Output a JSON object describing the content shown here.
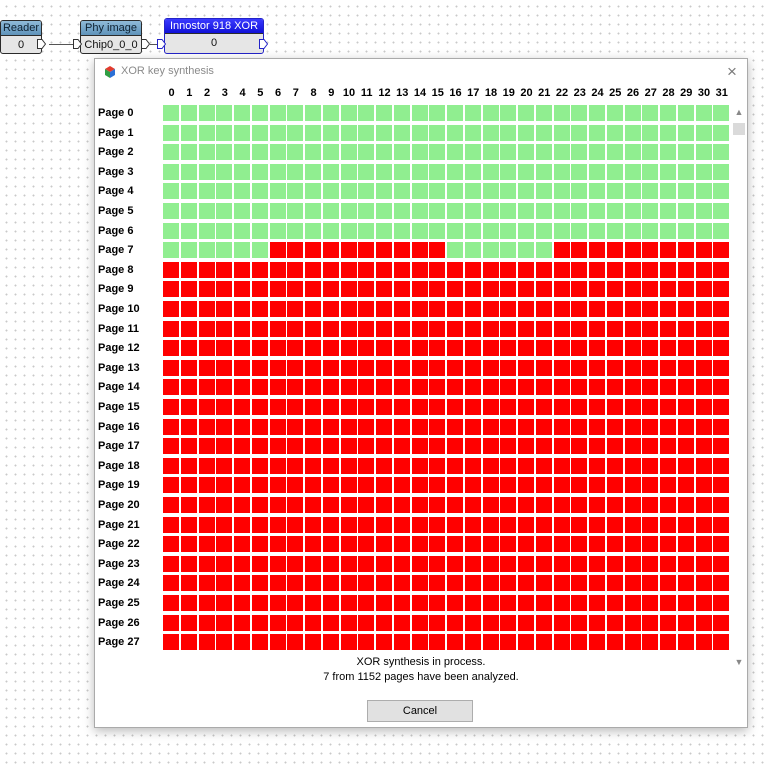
{
  "nodes": [
    {
      "title": "Reader",
      "value": "0"
    },
    {
      "title": "Phy image",
      "value": "Chip0_0_0"
    },
    {
      "title": "Innostor 918 XOR",
      "value": "0"
    }
  ],
  "dialog": {
    "title": "XOR key synthesis",
    "close_glyph": "×",
    "status_line1": "XOR synthesis in process.",
    "status_line2": "7 from 1152 pages have been analyzed.",
    "cancel_label": "Cancel"
  },
  "grid": {
    "columns": [
      "0",
      "1",
      "2",
      "3",
      "4",
      "5",
      "6",
      "7",
      "8",
      "9",
      "10",
      "11",
      "12",
      "13",
      "14",
      "15",
      "16",
      "17",
      "18",
      "19",
      "20",
      "21",
      "22",
      "23",
      "24",
      "25",
      "26",
      "27",
      "28",
      "29",
      "30",
      "31"
    ],
    "rows": [
      "Page 0",
      "Page 1",
      "Page 2",
      "Page 3",
      "Page 4",
      "Page 5",
      "Page 6",
      "Page 7",
      "Page 8",
      "Page 9",
      "Page 10",
      "Page 11",
      "Page 12",
      "Page 13",
      "Page 14",
      "Page 15",
      "Page 16",
      "Page 17",
      "Page 18",
      "Page 19",
      "Page 20",
      "Page 21",
      "Page 22",
      "Page 23",
      "Page 24",
      "Page 25",
      "Page 26",
      "Page 27"
    ],
    "analyzed_full_rows": 7,
    "partial_row": {
      "row": 7,
      "green_columns": [
        0,
        1,
        2,
        3,
        4,
        5,
        16,
        17,
        18,
        19,
        20,
        21
      ]
    },
    "colors": {
      "analyzed": "#90ee90",
      "pending": "#ff0000"
    }
  },
  "icons": {
    "app": "xor-app-icon",
    "close": "close-icon",
    "scroll_up": "scroll-up-icon",
    "scroll_down": "scroll-down-icon"
  }
}
